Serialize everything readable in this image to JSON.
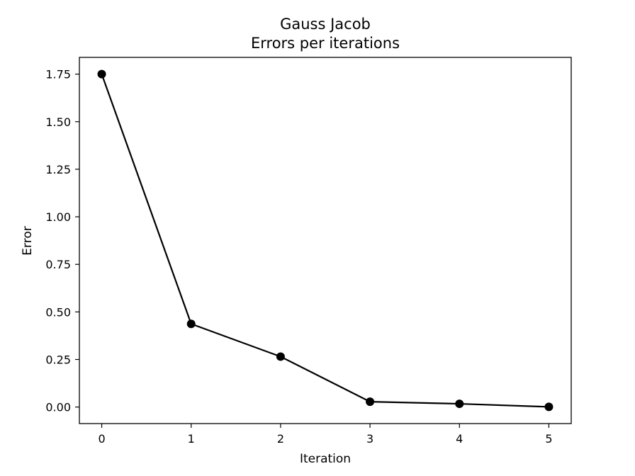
{
  "chart_data": {
    "type": "line",
    "title": "Gauss Jacob",
    "subtitle": "Errors per iterations",
    "xlabel": "Iteration",
    "ylabel": "Error",
    "x": [
      0,
      1,
      2,
      3,
      4,
      5
    ],
    "series": [
      {
        "values": [
          1.75,
          0.437,
          0.265,
          0.028,
          0.017,
          0.001
        ],
        "color": "#000000",
        "marker": "circle"
      }
    ],
    "xlim": [
      -0.25,
      5.25
    ],
    "ylim": [
      -0.087,
      1.838
    ],
    "xticks": [
      0,
      1,
      2,
      3,
      4,
      5
    ],
    "xtick_labels": [
      "0",
      "1",
      "2",
      "3",
      "4",
      "5"
    ],
    "yticks": [
      0.0,
      0.25,
      0.5,
      0.75,
      1.0,
      1.25,
      1.5,
      1.75
    ],
    "ytick_labels": [
      "0.00",
      "0.25",
      "0.50",
      "0.75",
      "1.00",
      "1.25",
      "1.50",
      "1.75"
    ],
    "grid": false,
    "legend": "none"
  }
}
